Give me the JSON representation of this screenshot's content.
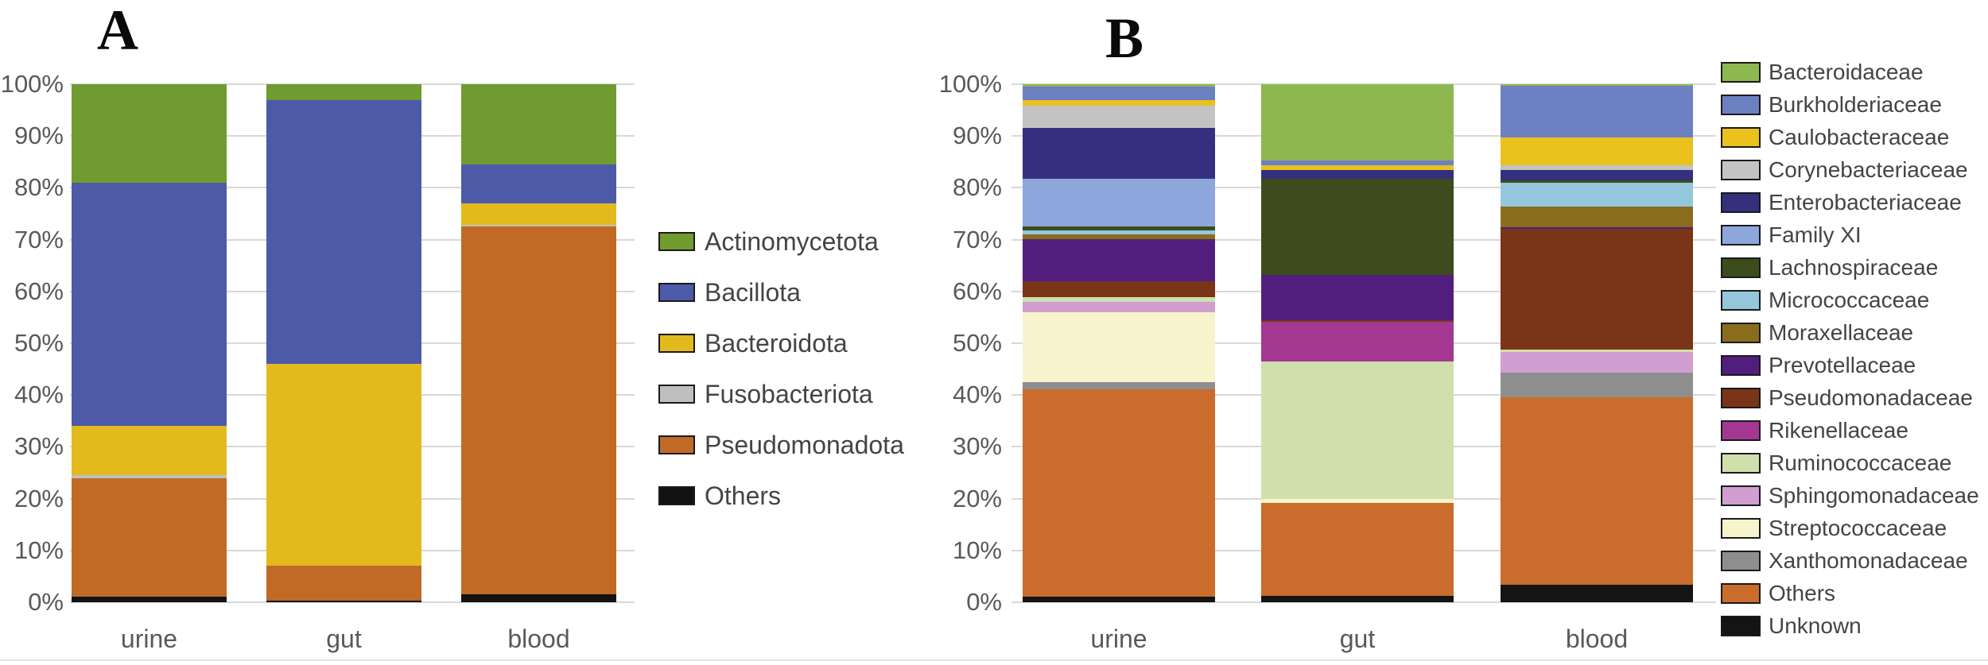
{
  "figure": {
    "panel_a_label": "A",
    "panel_b_label": "B"
  },
  "chart_data": [
    {
      "type": "bar",
      "subtype": "stacked-100-percent",
      "panel_label": "A",
      "title": "",
      "xlabel": "",
      "ylabel": "",
      "value_unit": "percent relative abundance",
      "ylim": [
        0,
        100
      ],
      "grid": true,
      "legend_position": "right",
      "y_ticks": [
        "100%",
        "90%",
        "80%",
        "70%",
        "60%",
        "50%",
        "40%",
        "30%",
        "20%",
        "10%",
        "0%"
      ],
      "categories": [
        "urine",
        "gut",
        "blood"
      ],
      "series": [
        {
          "name": "Actinomycetota",
          "color": "#6f9b30",
          "values": [
            19.0,
            3.0,
            15.5
          ]
        },
        {
          "name": "Bacillota",
          "color": "#4d5aa7",
          "values": [
            47.0,
            51.0,
            7.5
          ]
        },
        {
          "name": "Bacteroidota",
          "color": "#e3ba1d",
          "values": [
            9.5,
            39.0,
            4.1
          ]
        },
        {
          "name": "Fusobacteriota",
          "color": "#bfbfbf",
          "values": [
            0.5,
            0.0,
            0.4
          ]
        },
        {
          "name": "Pseudomonadota",
          "color": "#c16a26",
          "values": [
            23.0,
            6.7,
            71.0
          ]
        },
        {
          "name": "Others",
          "color": "#121212",
          "values": [
            1.0,
            0.3,
            1.5
          ]
        }
      ]
    },
    {
      "type": "bar",
      "subtype": "stacked-100-percent",
      "panel_label": "B",
      "title": "",
      "xlabel": "",
      "ylabel": "",
      "value_unit": "percent relative abundance",
      "ylim": [
        0,
        100
      ],
      "grid": true,
      "legend_position": "right",
      "y_ticks": [
        "100%",
        "90%",
        "80%",
        "70%",
        "60%",
        "50%",
        "40%",
        "30%",
        "20%",
        "10%",
        "0%"
      ],
      "categories": [
        "urine",
        "gut",
        "blood"
      ],
      "series": [
        {
          "name": "Bacteroidaceae",
          "color": "#8cb84f",
          "values": [
            0.5,
            14.8,
            0.3
          ]
        },
        {
          "name": "Burkholderiaceae",
          "color": "#6d80c2",
          "values": [
            2.6,
            0.9,
            10.0
          ]
        },
        {
          "name": "Caulobacteraceae",
          "color": "#eac11d",
          "values": [
            1.0,
            0.9,
            5.3
          ]
        },
        {
          "name": "Corynebacteriaceae",
          "color": "#c3c3c3",
          "values": [
            4.4,
            0.0,
            0.9
          ]
        },
        {
          "name": "Enterobacteriaceae",
          "color": "#34307e",
          "values": [
            9.7,
            1.7,
            2.0
          ]
        },
        {
          "name": "Family XI",
          "color": "#8da7dd",
          "values": [
            9.2,
            0.0,
            0.0
          ]
        },
        {
          "name": "Lachnospiraceae",
          "color": "#3c4c1c",
          "values": [
            0.8,
            18.5,
            0.6
          ]
        },
        {
          "name": "Micrococcaceae",
          "color": "#94c6dc",
          "values": [
            0.8,
            0.0,
            4.6
          ]
        },
        {
          "name": "Moraxellaceae",
          "color": "#8a6d1c",
          "values": [
            0.9,
            0.0,
            3.9
          ]
        },
        {
          "name": "Prevotellaceae",
          "color": "#521e7d",
          "values": [
            8.2,
            8.8,
            0.3
          ]
        },
        {
          "name": "Pseudomonadaceae",
          "color": "#7a3418",
          "values": [
            3.0,
            0.3,
            23.4
          ]
        },
        {
          "name": "Rikenellaceae",
          "color": "#a33792",
          "values": [
            0.0,
            7.7,
            0.0
          ]
        },
        {
          "name": "Ruminococcaceae",
          "color": "#cfe0ac",
          "values": [
            1.0,
            26.4,
            0.4
          ]
        },
        {
          "name": "Sphingomonadaceae",
          "color": "#d09ed0",
          "values": [
            1.9,
            0.0,
            4.0
          ]
        },
        {
          "name": "Streptococcaceae",
          "color": "#f7f3cd",
          "values": [
            13.6,
            0.8,
            0.0
          ]
        },
        {
          "name": "Xanthomonadaceae",
          "color": "#8e8e8e",
          "values": [
            1.3,
            0.0,
            4.8
          ]
        },
        {
          "name": "Others",
          "color": "#c96c2c",
          "values": [
            40.1,
            18.0,
            36.2
          ]
        },
        {
          "name": "Unknown",
          "color": "#141414",
          "values": [
            1.0,
            1.2,
            3.3
          ]
        }
      ]
    }
  ]
}
